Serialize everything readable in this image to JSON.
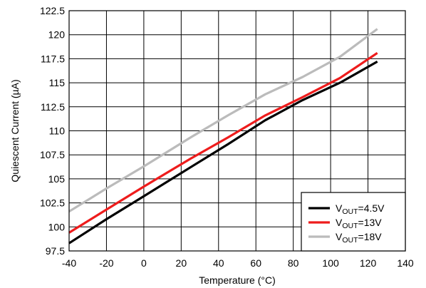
{
  "chart_data": {
    "type": "line",
    "title": "",
    "xlabel": "Temperature (°C)",
    "ylabel": "Quiescent Current (µA)",
    "xlim": [
      -40,
      140
    ],
    "ylim": [
      97.5,
      122.5
    ],
    "xticks": [
      -40,
      -20,
      0,
      20,
      40,
      60,
      80,
      100,
      120,
      140
    ],
    "yticks": [
      97.5,
      100,
      102.5,
      105,
      107.5,
      110,
      112.5,
      115,
      117.5,
      120,
      122.5
    ],
    "xtick_labels": [
      "-40",
      "-20",
      "0",
      "20",
      "40",
      "60",
      "80",
      "100",
      "120",
      "140"
    ],
    "ytick_labels": [
      "97.5",
      "100",
      "102.5",
      "105",
      "107.5",
      "110",
      "112.5",
      "115",
      "117.5",
      "120",
      "122.5"
    ],
    "grid": true,
    "legend_position": "bottom-right",
    "series": [
      {
        "name": "VOUT=4.5V",
        "name_parts": {
          "prefix": "V",
          "sub": "OUT",
          "suffix": "=4.5V"
        },
        "color": "#000000",
        "x": [
          -40,
          -20,
          0,
          25,
          45,
          65,
          85,
          105,
          125
        ],
        "y": [
          98.3,
          100.8,
          103.2,
          106.2,
          108.6,
          111.1,
          113.2,
          115.0,
          117.2
        ]
      },
      {
        "name": "VOUT=13V",
        "name_parts": {
          "prefix": "V",
          "sub": "OUT",
          "suffix": "=13V"
        },
        "color": "#ee1c1c",
        "x": [
          -40,
          -20,
          0,
          25,
          45,
          65,
          85,
          105,
          125
        ],
        "y": [
          99.4,
          101.8,
          104.2,
          107.1,
          109.3,
          111.6,
          113.5,
          115.5,
          118.1
        ]
      },
      {
        "name": "VOUT=18V",
        "name_parts": {
          "prefix": "V",
          "sub": "OUT",
          "suffix": "=18V"
        },
        "color": "#bbbbbb",
        "x": [
          -40,
          -20,
          0,
          25,
          45,
          65,
          85,
          105,
          125
        ],
        "y": [
          101.6,
          104.0,
          106.3,
          109.3,
          111.6,
          113.8,
          115.6,
          117.7,
          120.6
        ]
      }
    ]
  }
}
